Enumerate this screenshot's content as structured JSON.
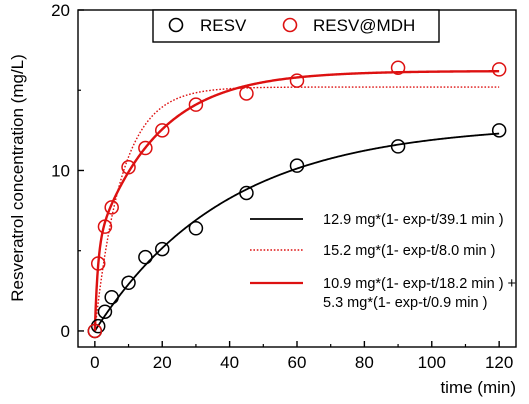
{
  "chart_data": {
    "type": "scatter",
    "xlabel": "time (min)",
    "ylabel": "Resveratrol concentration (mg/L)",
    "xlim": [
      -5,
      125
    ],
    "ylim": [
      -1,
      20
    ],
    "x_ticks": [
      "0",
      "20",
      "40",
      "60",
      "80",
      "100",
      "120"
    ],
    "y_ticks": [
      "0",
      "10",
      "20"
    ],
    "grid": false,
    "legend_position": "top",
    "series": [
      {
        "name": "RESV",
        "color": "#000000",
        "marker": "open-circle",
        "x": [
          0,
          1,
          3,
          5,
          10,
          15,
          20,
          30,
          45,
          60,
          90,
          120
        ],
        "y": [
          0.0,
          0.3,
          1.2,
          2.1,
          3.0,
          4.6,
          5.1,
          6.4,
          8.6,
          10.3,
          11.5,
          12.5
        ]
      },
      {
        "name": "RESV@MDH",
        "color": "#dd1111",
        "marker": "open-circle",
        "x": [
          0,
          1,
          3,
          5,
          10,
          15,
          20,
          30,
          45,
          60,
          90,
          120
        ],
        "y": [
          0.0,
          4.2,
          6.5,
          7.7,
          10.2,
          11.4,
          12.5,
          14.1,
          14.8,
          15.6,
          16.4,
          16.3
        ]
      }
    ],
    "fit_lines": [
      {
        "label": "12.9 mg*(1- exp-t/39.1 min )",
        "color": "#000000",
        "style": "solid",
        "terms": [
          {
            "a": 12.9,
            "tau": 39.1
          }
        ]
      },
      {
        "label": "15.2 mg*(1- exp-t/8.0 min )",
        "color": "#dd1111",
        "style": "dotted",
        "terms": [
          {
            "a": 15.2,
            "tau": 8.0
          }
        ]
      },
      {
        "label": "10.9 mg*(1- exp-t/18.2 min ) +",
        "label2": "5.3 mg*(1- exp-t/0.9 min )",
        "color": "#dd1111",
        "style": "solid",
        "terms": [
          {
            "a": 10.9,
            "tau": 18.2
          },
          {
            "a": 5.3,
            "tau": 0.9
          }
        ]
      }
    ]
  }
}
